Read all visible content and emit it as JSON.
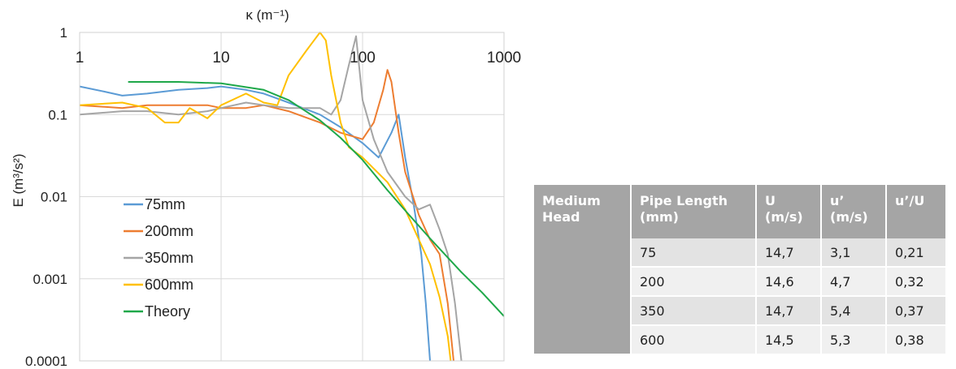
{
  "chart_data": {
    "type": "line",
    "xlabel": "κ (m⁻¹)",
    "ylabel": "E (m³/s²)",
    "xscale": "log",
    "yscale": "log",
    "xlim": [
      1,
      1000
    ],
    "ylim": [
      0.0001,
      1
    ],
    "x_ticks": [
      1,
      10,
      100,
      1000
    ],
    "x_tick_labels": [
      "1",
      "10",
      "100",
      "1000"
    ],
    "y_ticks": [
      1,
      0.1,
      0.01,
      0.001,
      0.0001
    ],
    "y_tick_labels": [
      "1",
      "0.1",
      "0.01",
      "0.001",
      "0.0001"
    ],
    "x_axis_position": "top",
    "grid": true,
    "legend_position": "lower-left",
    "series": [
      {
        "name": "75mm",
        "color": "#5b9bd5",
        "x": [
          1,
          1.5,
          2,
          3,
          5,
          8,
          10,
          15,
          20,
          30,
          50,
          70,
          100,
          130,
          160,
          180,
          200,
          230,
          260,
          280,
          300
        ],
        "y": [
          0.22,
          0.19,
          0.17,
          0.18,
          0.2,
          0.21,
          0.22,
          0.2,
          0.18,
          0.14,
          0.1,
          0.07,
          0.045,
          0.03,
          0.06,
          0.1,
          0.03,
          0.008,
          0.002,
          0.0005,
          0.0001
        ]
      },
      {
        "name": "200mm",
        "color": "#ed7d31",
        "x": [
          1,
          2,
          3,
          5,
          8,
          10,
          15,
          20,
          30,
          50,
          70,
          100,
          120,
          140,
          150,
          160,
          180,
          200,
          250,
          300,
          350,
          400,
          440
        ],
        "y": [
          0.13,
          0.12,
          0.13,
          0.13,
          0.13,
          0.12,
          0.12,
          0.13,
          0.11,
          0.08,
          0.06,
          0.05,
          0.08,
          0.2,
          0.35,
          0.25,
          0.06,
          0.02,
          0.006,
          0.003,
          0.002,
          0.0005,
          0.0001
        ]
      },
      {
        "name": "350mm",
        "color": "#a5a5a5",
        "x": [
          1,
          2,
          3,
          5,
          8,
          10,
          15,
          20,
          30,
          50,
          60,
          70,
          80,
          90,
          100,
          120,
          150,
          200,
          250,
          300,
          350,
          400,
          450,
          500
        ],
        "y": [
          0.1,
          0.11,
          0.11,
          0.1,
          0.11,
          0.12,
          0.14,
          0.13,
          0.12,
          0.12,
          0.1,
          0.15,
          0.4,
          0.9,
          0.15,
          0.05,
          0.02,
          0.01,
          0.007,
          0.008,
          0.004,
          0.002,
          0.0005,
          0.0001
        ]
      },
      {
        "name": "600mm",
        "color": "#ffc000",
        "x": [
          1,
          2,
          3,
          4,
          5,
          6,
          8,
          10,
          15,
          20,
          25,
          30,
          40,
          50,
          55,
          60,
          70,
          80,
          100,
          150,
          200,
          250,
          300,
          350,
          400,
          420
        ],
        "y": [
          0.13,
          0.14,
          0.12,
          0.08,
          0.08,
          0.12,
          0.09,
          0.13,
          0.18,
          0.14,
          0.13,
          0.3,
          0.6,
          1.0,
          0.8,
          0.3,
          0.08,
          0.04,
          0.03,
          0.015,
          0.007,
          0.003,
          0.0015,
          0.0006,
          0.0002,
          0.0001
        ]
      },
      {
        "name": "Theory",
        "color": "#1fa84a",
        "x": [
          2.2,
          5,
          10,
          20,
          30,
          50,
          70,
          100,
          150,
          200,
          300,
          500,
          700,
          1000
        ],
        "y": [
          0.25,
          0.25,
          0.24,
          0.2,
          0.15,
          0.085,
          0.052,
          0.028,
          0.012,
          0.0068,
          0.0031,
          0.0012,
          0.00068,
          0.00035
        ]
      }
    ]
  },
  "table": {
    "headers": [
      "Medium Head",
      "Pipe Length (mm)",
      "U (m/s)",
      "u’ (m/s)",
      "u’/U"
    ],
    "rows": [
      [
        "75",
        "14,7",
        "3,1",
        "0,21"
      ],
      [
        "200",
        "14,6",
        "4,7",
        "0,32"
      ],
      [
        "350",
        "14,7",
        "5,4",
        "0,37"
      ],
      [
        "600",
        "14,5",
        "5,3",
        "0,38"
      ]
    ]
  }
}
